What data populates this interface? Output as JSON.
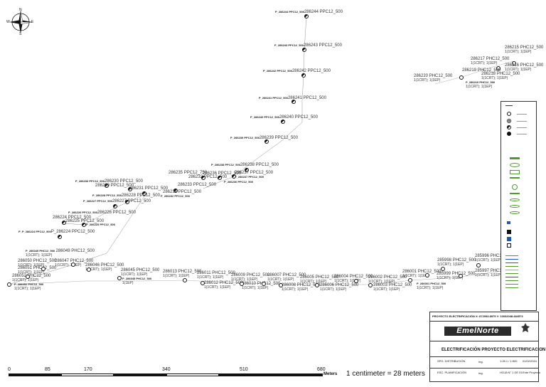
{
  "north_arrow": {
    "n": "N",
    "s": "S",
    "e": "E",
    "w": "W"
  },
  "poles_top": [
    {
      "id": "P_286244 PPC12_500",
      "name": "286244 PPC12_500"
    },
    {
      "id": "P_286243 PPC12_500",
      "name": "286243 PPC12_500"
    },
    {
      "id": "P_286242 PPC12_500",
      "name": "286242 PPC12_500"
    },
    {
      "id": "P_286241 PPC12_500",
      "name": "286241 PPC12_500"
    },
    {
      "id": "P_286240 PPC12_500",
      "name": "286240 PPC12_500"
    },
    {
      "id": "P_286239 PPC12_500",
      "name": "286239 PPC12_500"
    },
    {
      "id": "P_286238 PPC12_500",
      "name": "286238 PPC12_500"
    }
  ],
  "poles_mid": [
    {
      "id": "P_286230 PPC12_500",
      "name": "286230 PPC12_500"
    },
    {
      "name": "286229 PPC12_500"
    },
    {
      "name": "286231 PPC12_500"
    },
    {
      "id": "P_286228 PPC12_500",
      "name": "286228 PPC12_500"
    },
    {
      "id": "P_286227 PPC12_500",
      "name": "286227 PPC12_500"
    },
    {
      "id": "P_286226 PPC12_500",
      "name": "286226 PPC12_500"
    },
    {
      "name": "286225 PPC12_500",
      "id": "P_286225 PPC12_500"
    },
    {
      "name": "286224 PPC12_500"
    },
    {
      "id": "P_P_286224 PPC12_500",
      "name": "P_286224 PPC12_500"
    },
    {
      "name": "286235 PPC12_750"
    },
    {
      "name": "286236 PPC12_500"
    },
    {
      "name": "286237 PPC12_500",
      "id": "P_286237 PPC12_500"
    },
    {
      "name": "286233 PPC12_500"
    },
    {
      "name": "286232 PPC12_500",
      "id": "P_286232 PPC12_500"
    },
    {
      "name": "286234 PPC12_500"
    },
    {
      "id": "P_286236 PPC12_500"
    }
  ],
  "poles_right_top": [
    {
      "name": "286215 PHC12_500",
      "sub": "1(1CRT); 1(1EP)"
    },
    {
      "name": "286217 PHC12_500",
      "sub": "1(1CRT); 1(1EP)"
    },
    {
      "name": "286216 PHC12_500",
      "sub": "1(1CRT); 1(1EP)"
    },
    {
      "name": "286219 PHC12_500"
    },
    {
      "name": "286218 PHC12_500",
      "sub": "1(1CRT); 1(1EP)"
    },
    {
      "name": "286220 PHC12_500",
      "sub": "1(1CRT); 1(1EP)"
    },
    {
      "id": "P_286210 PHC12_500",
      "sub": "1(1CRT); 1(1EP)"
    }
  ],
  "poles_bottom": [
    {
      "id": "P_286049 PHC12_500",
      "name": "286049 PHC12_500",
      "sub": "1(1CRT); 1(1EP)"
    },
    {
      "name": "286050 PHC12_500",
      "sub": "1(1CRT); 1(1EP)"
    },
    {
      "name": "286047 PHC12_500",
      "sub": "1(1CRT); 1(1EP)"
    },
    {
      "name": "286051 PHC12_500",
      "sub": "1(1CRT); 1(1EP)"
    },
    {
      "name": "286052 PHC12_500",
      "sub": "1(1CRT); 1(1EP)"
    },
    {
      "id": "P_286052 PHC12_500",
      "sub": "1(1CRT); 1(1EP)"
    },
    {
      "name": "286046 PHC12_500",
      "sub": "1(1CRT); 1(1EP)"
    },
    {
      "name": "286045 PHC12_500",
      "sub": "1(1CRT); 1(1EP)"
    },
    {
      "id": "P_286045 PHC12_500",
      "sub": "1(1EP)"
    },
    {
      "name": "286013 PHC12_500",
      "sub": "1(1CRT); 1(1EP)"
    },
    {
      "name": "286011 PHC12_500",
      "sub": "1(1CRT); 1(1EP)"
    },
    {
      "name": "286012 PHC12_500",
      "sub": "1(1CRT); 1(1EP)"
    },
    {
      "name": "286009 PHC12_500",
      "sub": "1(1CRT); 1(1EP)"
    },
    {
      "name": "286007 PHC12_500",
      "sub": "1(1CRT); 1(1EP)"
    },
    {
      "name": "286010 PHC12_500",
      "sub": "1(1CRT); 1(1EP)"
    },
    {
      "name": "286005 PHC12_500",
      "sub": "1(1CRT); 1(1EP)"
    },
    {
      "name": "286008 PHC12_500",
      "sub": "1(1CRT); 1(1EP)"
    },
    {
      "name": "286006 PHC12_500",
      "sub": "1(1CRT); 1(1EP)"
    },
    {
      "name": "286004 PHC12_500",
      "sub": "1(1CRT); 1(1EP)"
    },
    {
      "name": "286003 PHC12_500",
      "sub": "1(1CRT); 1(1EP)"
    },
    {
      "name": "286002 PHC12_500",
      "sub": "1(1CRT); 1(1EP)"
    },
    {
      "name": "286001 PHC12_500",
      "sub": "1(1CRT); 1(1EP)"
    },
    {
      "id": "P_286001 PHC12_500",
      "sub": "1(1CRT); 1(1EP)"
    },
    {
      "name": "285996 PHC12_500",
      "sub": "1(1CRT); 1(1EP)"
    },
    {
      "name": "285998 PHC12_500",
      "sub": "1(1CRT); 1(1EP)"
    },
    {
      "name": "285997 PHC12_500",
      "sub": "1(1CRT); 1(1EP)"
    },
    {
      "name": "285999 PHC12_500",
      "sub": "1(1CRT); 1(1EP)"
    },
    {
      "name": "286000 PHC12_500",
      "sub": "1(1CRT); 1(1EP)"
    }
  ],
  "title_block": {
    "project_line": "PROYECTO ELECTRIFICACIÓN X: 872093.8975  Y: 10032048.484573",
    "logo": "EmelNorte",
    "title": "ELECTRIFICACIÓN PROYECTO ELECTRIFICACION",
    "field1": "SPG. DISTRIBUCIÓN",
    "field2": "ESC. PLANIFICACIÓN",
    "field3": "Ing.",
    "field4": "1:28.1 / 1:500",
    "field5": "01/02/2024",
    "field6": "HOJA N° 1 DE 01",
    "field7": "Ente Proyecto"
  },
  "scale_bar": {
    "ticks": [
      "0",
      "85",
      "170",
      "340",
      "510",
      "680"
    ],
    "unit": "Meters",
    "text": "1 centimeter = 28 meters"
  },
  "colors": {
    "legend_green": "#4f9a2e",
    "legend_blue": "#1f57b8",
    "text": "#222222"
  }
}
